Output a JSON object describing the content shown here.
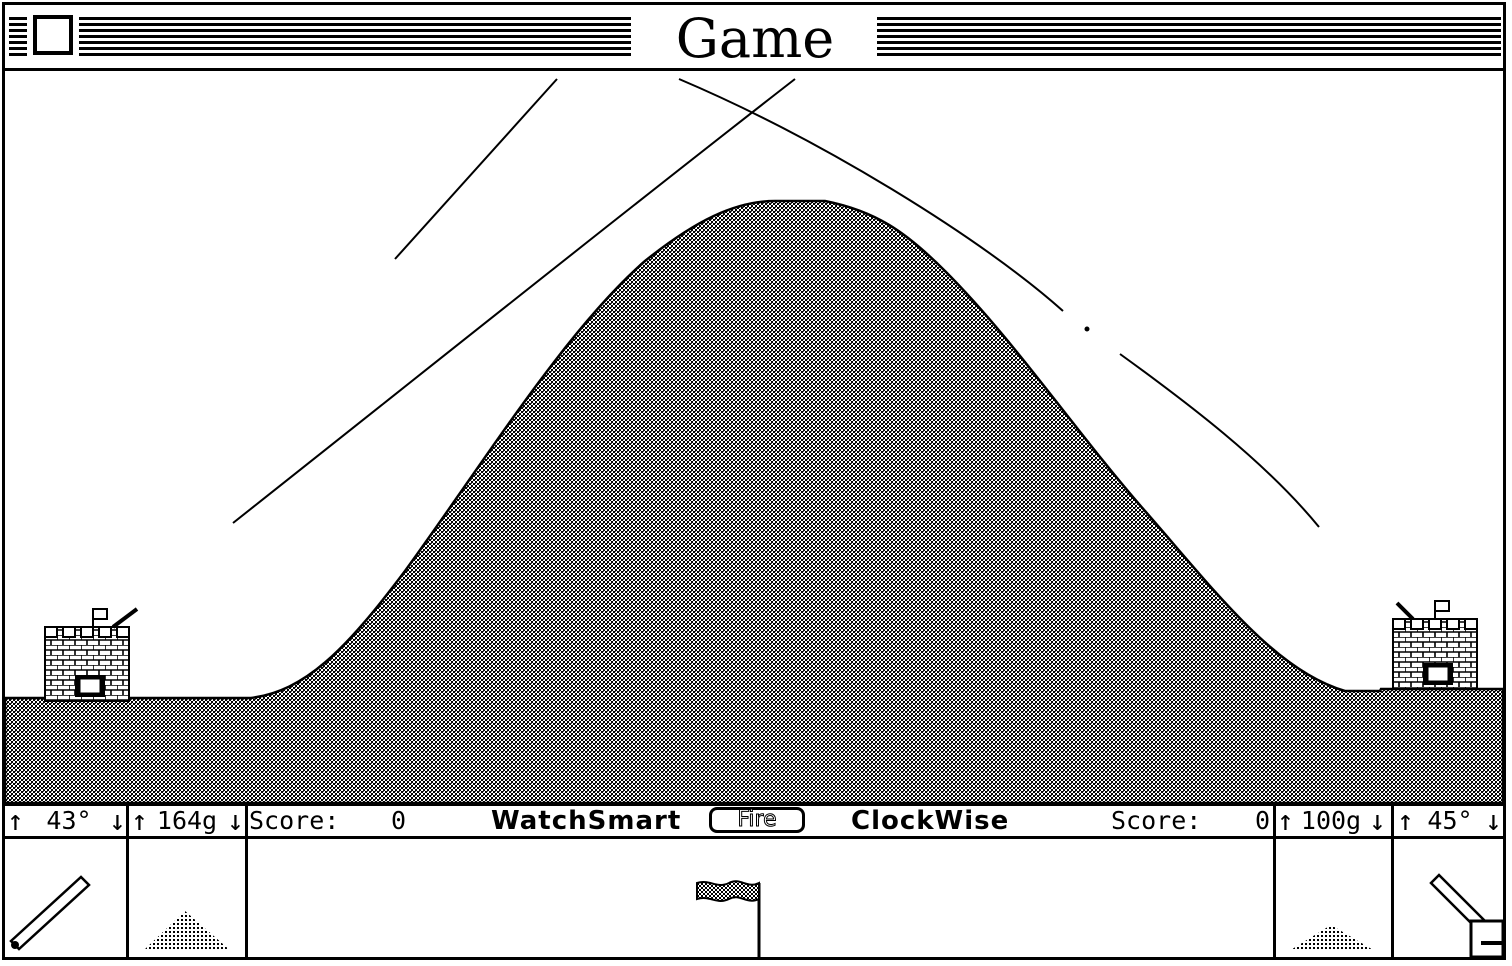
{
  "window": {
    "title": "Game"
  },
  "status": {
    "left_angle": "43°",
    "left_powder": "164g",
    "left_score_label": "Score:",
    "left_score_value": "0",
    "left_player": "WatchSmart",
    "fire_label": "Fire",
    "right_player": "ClockWise",
    "right_score_label": "Score:",
    "right_score_value": "0",
    "right_powder": "100g",
    "right_angle": "45°",
    "up_arrow": "↑",
    "down_arrow": "↓"
  },
  "icons": {
    "close": "close-box-icon",
    "left_castle": "castle-icon",
    "right_castle": "castle-icon",
    "wind_flag": "wind-flag-icon",
    "angle_gauge": "cannon-angle-icon",
    "powder_pile": "powder-pile-icon"
  },
  "colors": {
    "foreground": "#000000",
    "background": "#ffffff",
    "terrain_pattern": "dithered-gray"
  }
}
